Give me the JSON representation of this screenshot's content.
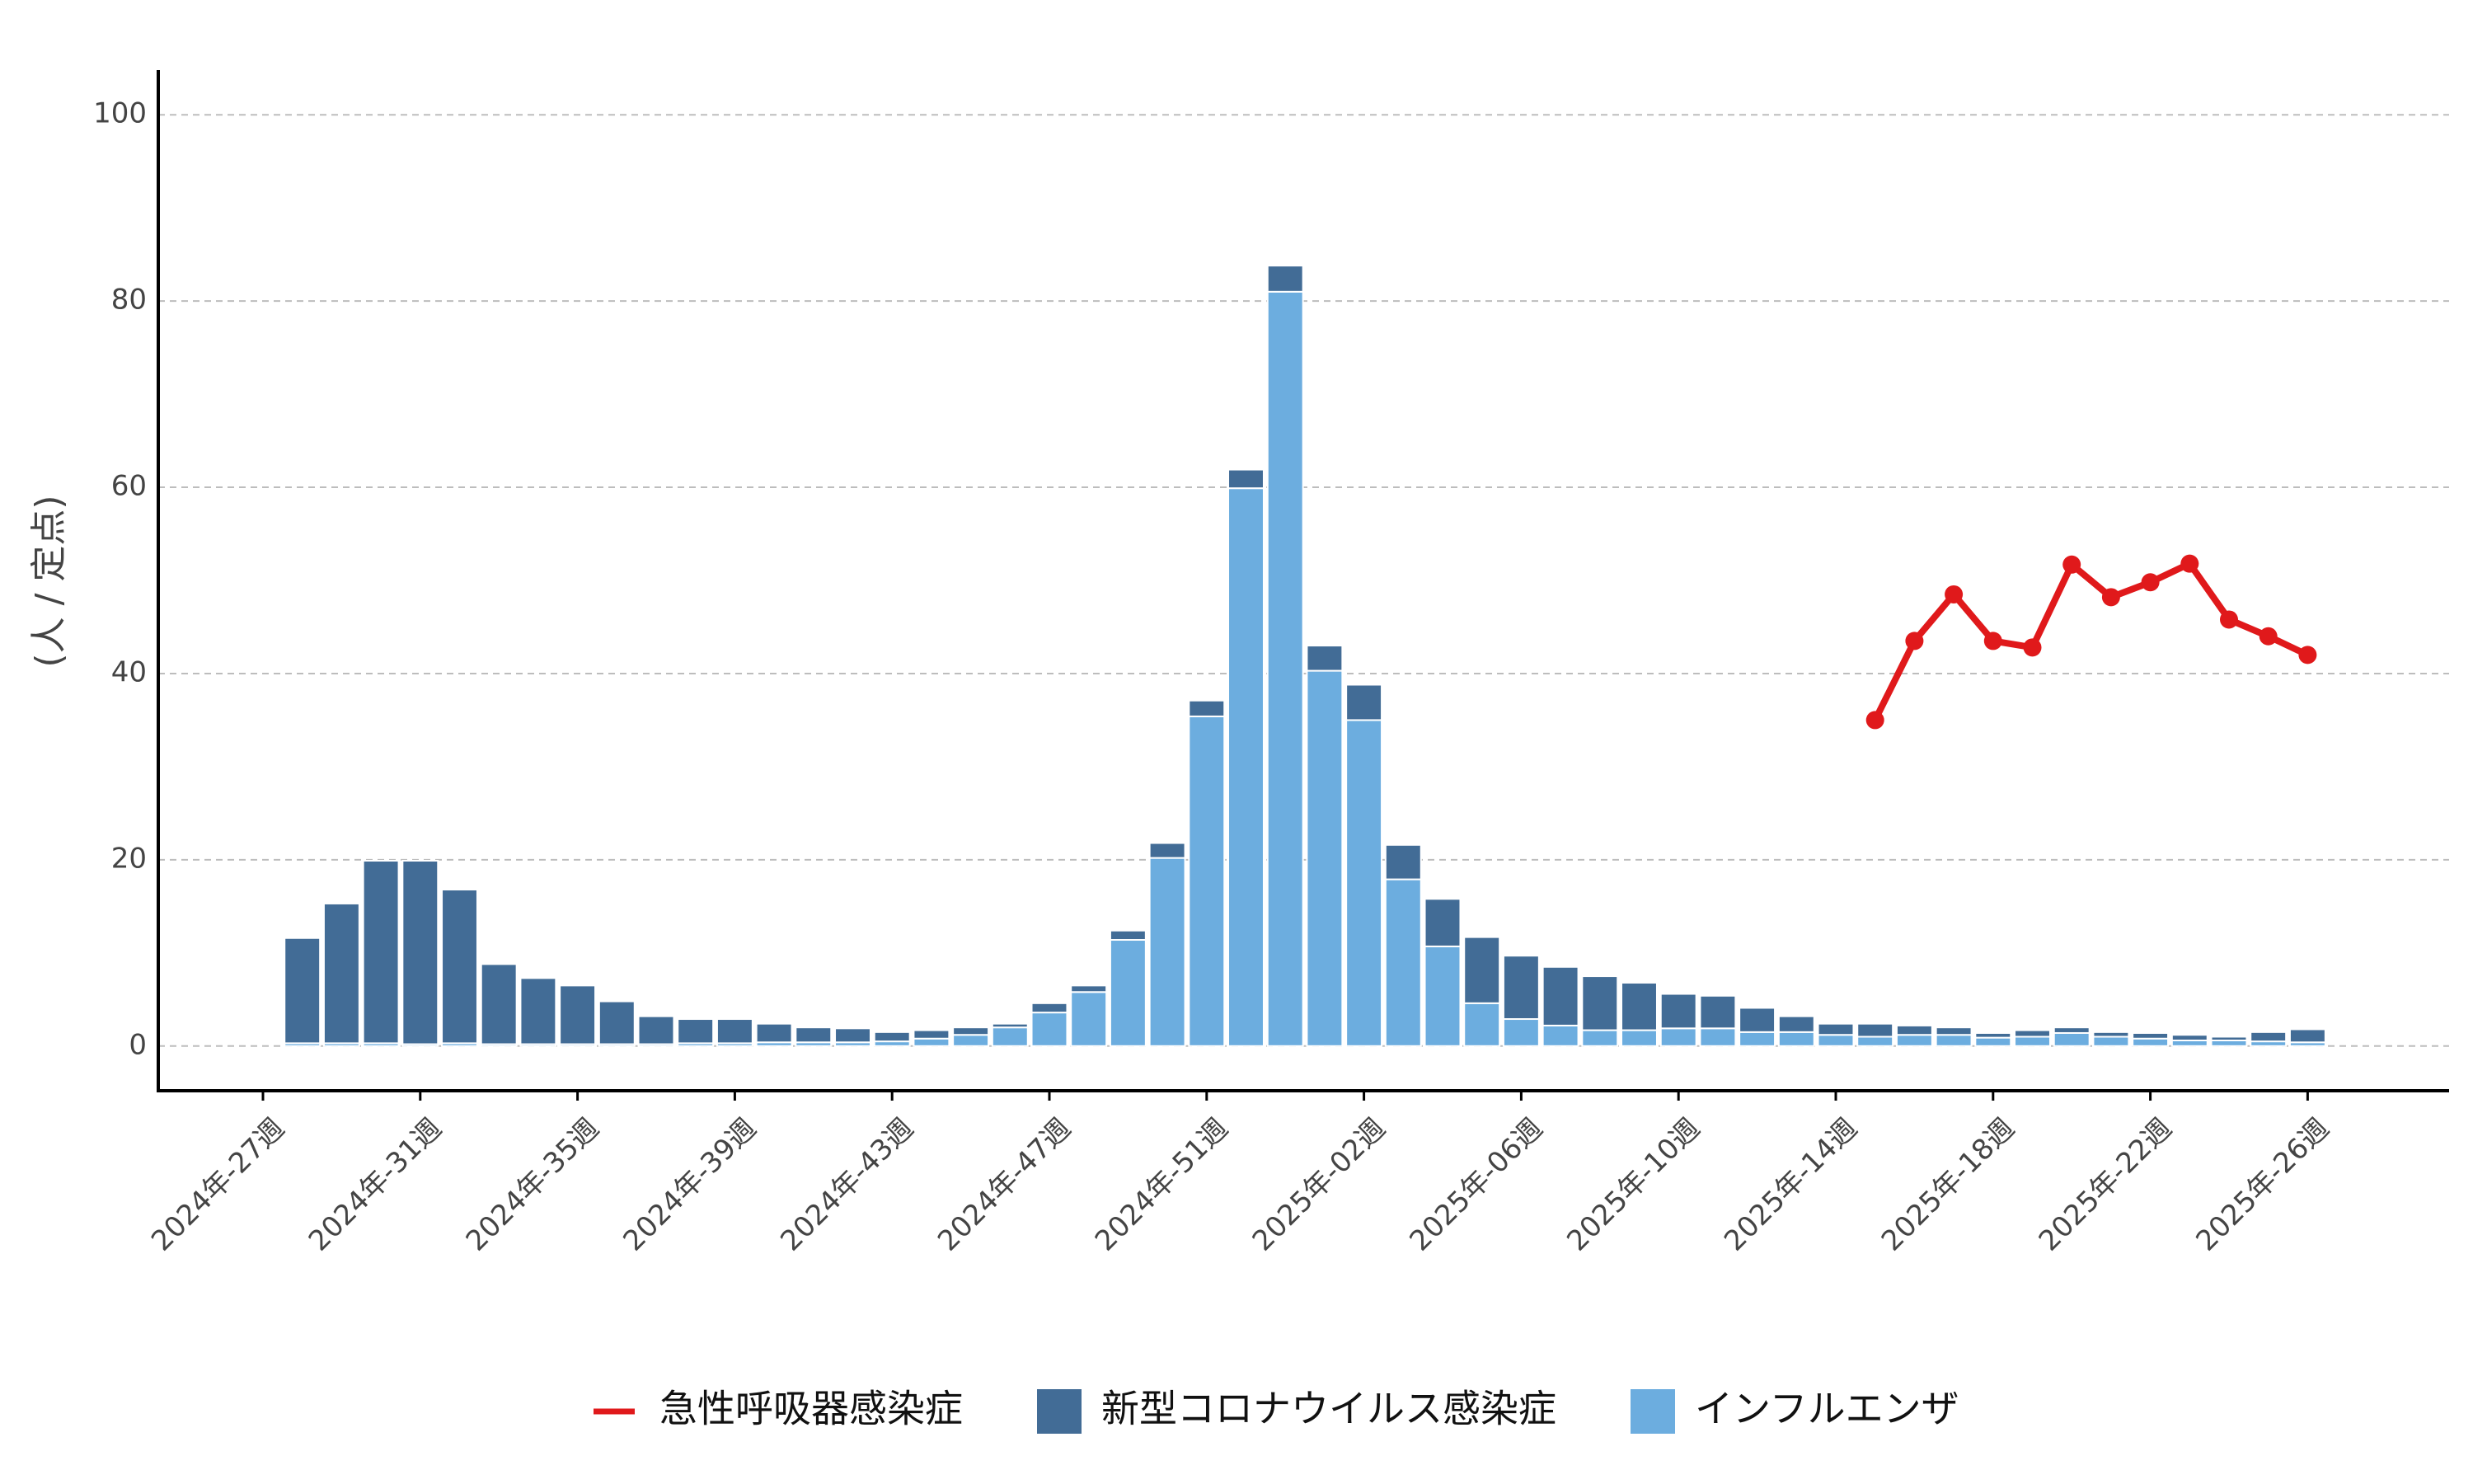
{
  "chart_data": {
    "type": "bar",
    "y_label": "(人 / 定点)",
    "categories": [
      "2024年-27週",
      null,
      null,
      null,
      "2024年-31週",
      null,
      null,
      null,
      "2024年-35週",
      null,
      null,
      null,
      "2024年-39週",
      null,
      null,
      null,
      "2024年-43週",
      null,
      null,
      null,
      "2024年-47週",
      null,
      null,
      null,
      "2024年-51週",
      null,
      null,
      null,
      "2025年-02週",
      null,
      null,
      null,
      "2025年-06週",
      null,
      null,
      null,
      "2025年-10週",
      null,
      null,
      null,
      "2025年-14週",
      null,
      null,
      null,
      "2025年-18週",
      null,
      null,
      null,
      "2025年-22週",
      null,
      null,
      null,
      "2025年-26週"
    ],
    "series": [
      {
        "name": "急性呼吸器感染症",
        "type": "line",
        "color": "#e0191b",
        "values": [
          null,
          null,
          null,
          null,
          null,
          null,
          null,
          null,
          null,
          null,
          null,
          null,
          null,
          null,
          null,
          null,
          null,
          null,
          null,
          null,
          null,
          null,
          null,
          null,
          null,
          null,
          null,
          null,
          null,
          null,
          null,
          null,
          null,
          null,
          null,
          null,
          null,
          null,
          null,
          null,
          null,
          35.0,
          43.5,
          48.5,
          43.5,
          42.8,
          51.7,
          48.2,
          49.8,
          51.8,
          45.8,
          44.0,
          42.0
        ]
      },
      {
        "name": "新型コロナウイルス感染症",
        "type": "bar",
        "color": "#426c96",
        "values": [
          null,
          11.3,
          15.0,
          19.6,
          19.7,
          16.5,
          8.6,
          7.1,
          6.3,
          4.6,
          3.0,
          2.6,
          2.6,
          2.0,
          1.6,
          1.5,
          1.0,
          0.9,
          0.8,
          0.4,
          1.0,
          0.7,
          1.0,
          1.6,
          1.7,
          2.0,
          2.8,
          2.7,
          3.8,
          3.7,
          5.1,
          7.1,
          6.8,
          6.3,
          5.8,
          5.1,
          3.7,
          3.5,
          2.6,
          1.7,
          1.2,
          1.4,
          1.0,
          0.8,
          0.5,
          0.7,
          0.6,
          0.5,
          0.6,
          0.6,
          0.4,
          1.0,
          1.4
        ]
      },
      {
        "name": "インフルエンザ",
        "type": "bar",
        "color": "#6caddf",
        "values": [
          null,
          0.3,
          0.3,
          0.3,
          0.2,
          0.3,
          0.2,
          0.2,
          0.2,
          0.2,
          0.2,
          0.3,
          0.3,
          0.4,
          0.4,
          0.4,
          0.5,
          0.8,
          1.2,
          2.0,
          3.6,
          5.8,
          11.4,
          20.2,
          35.4,
          59.9,
          81.0,
          40.3,
          35.0,
          17.9,
          10.7,
          4.6,
          2.9,
          2.2,
          1.7,
          1.7,
          1.9,
          1.9,
          1.5,
          1.5,
          1.2,
          1.0,
          1.2,
          1.2,
          0.9,
          1.0,
          1.4,
          1.0,
          0.8,
          0.6,
          0.6,
          0.5,
          0.4
        ]
      }
    ],
    "ylim": [
      -4.8,
      104.8
    ],
    "yticks": [
      0,
      20,
      40,
      60,
      80,
      100
    ],
    "grid": true,
    "legend": "bottom"
  }
}
